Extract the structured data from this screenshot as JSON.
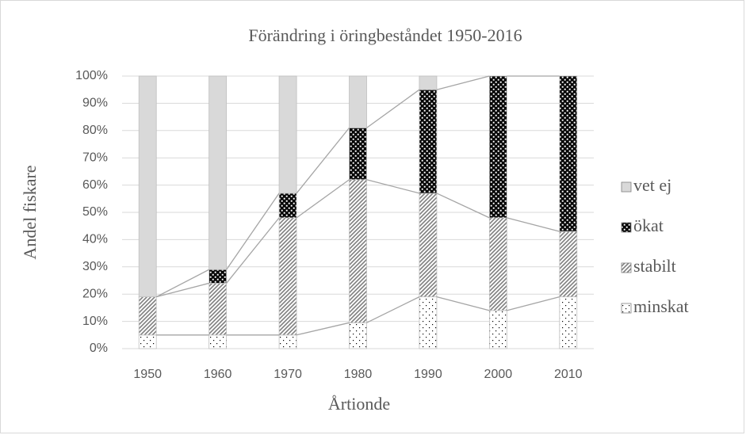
{
  "chart_data": {
    "type": "stacked_bar",
    "title": "Förändring i öringbeståndet 1950-2016",
    "y_label": "Andel fiskare",
    "x_label": "Årtionde",
    "categories": [
      "1950",
      "1960",
      "1970",
      "1980",
      "1990",
      "2000",
      "2010"
    ],
    "series": [
      {
        "name": "minskat",
        "color": "#000000",
        "values": [
          5,
          5,
          5,
          9.5,
          19,
          14,
          19
        ]
      },
      {
        "name": "stabilt",
        "color": "#7f7f7f",
        "values": [
          14,
          19,
          43,
          52.5,
          38,
          34,
          24
        ]
      },
      {
        "name": "ökat",
        "color": "#000000",
        "values": [
          0,
          5,
          9,
          19,
          38,
          52,
          57
        ]
      },
      {
        "name": "vet ej",
        "color": "#d9d9d9",
        "values": [
          81,
          71,
          43,
          19,
          5,
          0,
          0
        ]
      }
    ],
    "ylim": [
      0,
      100
    ],
    "yticks": [
      {
        "value": 0,
        "label": "0%"
      },
      {
        "value": 10,
        "label": "10%"
      },
      {
        "value": 20,
        "label": "20%"
      },
      {
        "value": 30,
        "label": "30%"
      },
      {
        "value": 40,
        "label": "40%"
      },
      {
        "value": 50,
        "label": "50%"
      },
      {
        "value": 60,
        "label": "60%"
      },
      {
        "value": 70,
        "label": "70%"
      },
      {
        "value": 80,
        "label": "80%"
      },
      {
        "value": 90,
        "label": "90%"
      },
      {
        "value": 100,
        "label": "100%"
      }
    ],
    "grid": true,
    "legend": "right"
  }
}
